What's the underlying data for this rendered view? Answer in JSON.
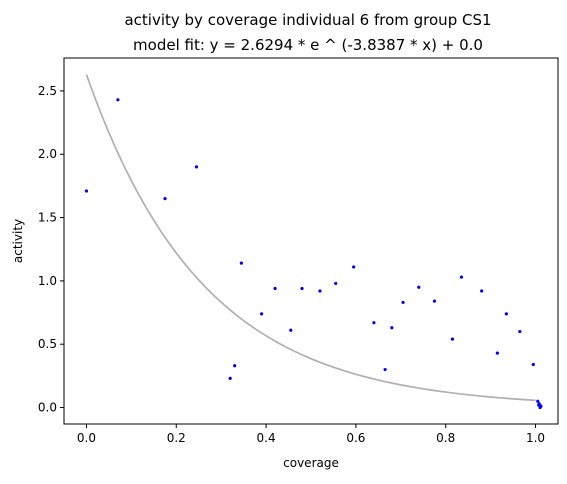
{
  "chart_data": {
    "type": "scatter",
    "title": "activity by coverage individual 6 from group CS1",
    "subtitle": "model fit: y = 2.6294 * e ^ (-3.8387 * x) + 0.0",
    "xlabel": "coverage",
    "ylabel": "activity",
    "xlim": [
      -0.05,
      1.05
    ],
    "ylim": [
      -0.13,
      2.76
    ],
    "x_ticks": [
      "0.0",
      "0.2",
      "0.4",
      "0.6",
      "0.8",
      "1.0"
    ],
    "x_tick_values": [
      0.0,
      0.2,
      0.4,
      0.6,
      0.8,
      1.0
    ],
    "y_ticks": [
      "0.0",
      "0.5",
      "1.0",
      "1.5",
      "2.0",
      "2.5"
    ],
    "y_tick_values": [
      0.0,
      0.5,
      1.0,
      1.5,
      2.0,
      2.5
    ],
    "grid": false,
    "legend": "none",
    "point_color": "#0000ff",
    "fit_color": "#b0b0b0",
    "fit": {
      "a": 2.6294,
      "b": -3.8387,
      "c": 0.0,
      "x_start": 0.0,
      "x_end": 1.0
    },
    "points": [
      {
        "x": 0.0,
        "y": 1.71
      },
      {
        "x": 0.07,
        "y": 2.43
      },
      {
        "x": 0.175,
        "y": 1.65
      },
      {
        "x": 0.245,
        "y": 1.9
      },
      {
        "x": 0.32,
        "y": 0.23
      },
      {
        "x": 0.33,
        "y": 0.33
      },
      {
        "x": 0.345,
        "y": 1.14
      },
      {
        "x": 0.39,
        "y": 0.74
      },
      {
        "x": 0.42,
        "y": 0.94
      },
      {
        "x": 0.455,
        "y": 0.61
      },
      {
        "x": 0.48,
        "y": 0.94
      },
      {
        "x": 0.52,
        "y": 0.92
      },
      {
        "x": 0.555,
        "y": 0.98
      },
      {
        "x": 0.595,
        "y": 1.11
      },
      {
        "x": 0.64,
        "y": 0.67
      },
      {
        "x": 0.665,
        "y": 0.3
      },
      {
        "x": 0.68,
        "y": 0.63
      },
      {
        "x": 0.705,
        "y": 0.83
      },
      {
        "x": 0.74,
        "y": 0.95
      },
      {
        "x": 0.775,
        "y": 0.84
      },
      {
        "x": 0.815,
        "y": 0.54
      },
      {
        "x": 0.835,
        "y": 1.03
      },
      {
        "x": 0.88,
        "y": 0.92
      },
      {
        "x": 0.915,
        "y": 0.43
      },
      {
        "x": 0.935,
        "y": 0.74
      },
      {
        "x": 0.965,
        "y": 0.6
      },
      {
        "x": 0.995,
        "y": 0.34
      },
      {
        "x": 1.005,
        "y": 0.05
      },
      {
        "x": 1.007,
        "y": 0.02
      },
      {
        "x": 1.01,
        "y": 0.0
      },
      {
        "x": 1.012,
        "y": 0.01
      },
      {
        "x": 1.008,
        "y": 0.03
      },
      {
        "x": 1.01,
        "y": 0.015
      }
    ]
  }
}
